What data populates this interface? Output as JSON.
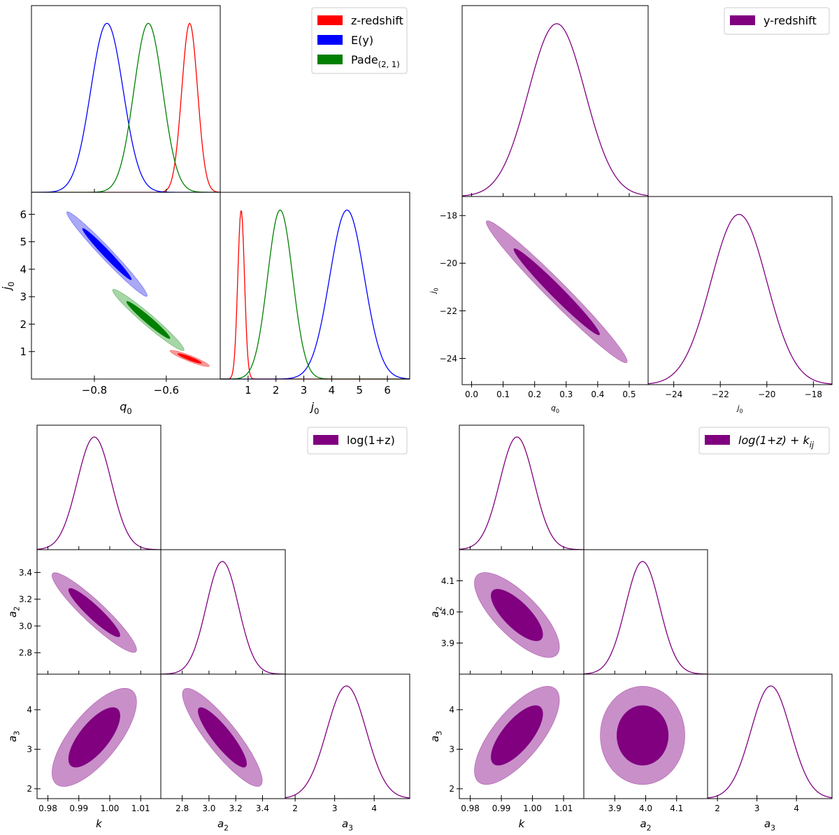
{
  "colors": {
    "red": "#ff0000",
    "blue": "#0000ff",
    "green": "#008000",
    "purple": "#800080",
    "purple_light": "#c98fc9",
    "red_light": "#f59a9a",
    "blue_light": "#a9a9f5",
    "green_light": "#a6d6a6"
  },
  "chart_data": [
    {
      "type": "triangle",
      "panel": "top-left",
      "params": [
        {
          "name": "q0",
          "label": "q",
          "sub": "0",
          "range": [
            -0.975,
            -0.45
          ],
          "ticks": [
            -0.8,
            -0.6
          ],
          "tick_labels": [
            "−0.8",
            "−0.6"
          ]
        },
        {
          "name": "j0",
          "label": "j",
          "sub": "0",
          "range": [
            0.0,
            6.8
          ],
          "ticks": [
            1,
            2,
            3,
            4,
            5,
            6
          ],
          "tick_labels": [
            "1",
            "2",
            "3",
            "4",
            "5",
            "6"
          ]
        }
      ],
      "legend": {
        "position": "top-right",
        "entries": [
          {
            "text": "z-redshift",
            "sub": "",
            "color": "red"
          },
          {
            "text": "E(y)",
            "sub": "",
            "color": "blue"
          },
          {
            "text": "Pade",
            "sub": "(2, 1)",
            "color": "green"
          }
        ]
      },
      "series": [
        {
          "color": "red",
          "fill": "red_light",
          "mean": [
            -0.535,
            0.75
          ],
          "sigma": [
            0.022,
            0.12
          ],
          "rho": -0.92,
          "contour1": true
        },
        {
          "color": "blue",
          "fill": "blue_light",
          "mean": [
            -0.765,
            4.55
          ],
          "sigma": [
            0.045,
            0.62
          ],
          "rho": -0.98,
          "contour1": true
        },
        {
          "color": "green",
          "fill": "green_light",
          "mean": [
            -0.65,
            2.15
          ],
          "sigma": [
            0.04,
            0.45
          ],
          "rho": -0.97,
          "contour1": true
        }
      ]
    },
    {
      "type": "triangle",
      "panel": "top-right",
      "params": [
        {
          "name": "q0",
          "label": "q",
          "sub": "0",
          "range": [
            -0.03,
            0.56
          ],
          "ticks": [
            0.0,
            0.1,
            0.2,
            0.3,
            0.4,
            0.5
          ],
          "tick_labels": [
            "0.0",
            "0.1",
            "0.2",
            "0.3",
            "0.4",
            "0.5"
          ]
        },
        {
          "name": "j0",
          "label": "j",
          "sub": "0",
          "range": [
            -25.1,
            -17.2
          ],
          "ticks": [
            -24,
            -22,
            -20,
            -18
          ],
          "tick_labels": [
            "−24",
            "−22",
            "−20",
            "−18"
          ]
        }
      ],
      "legend": {
        "position": "top-right",
        "entries": [
          {
            "text": "y-redshift",
            "sub": "",
            "color": "purple"
          }
        ]
      },
      "series": [
        {
          "color": "purple",
          "fill": "purple_light",
          "mean": [
            0.27,
            -21.2
          ],
          "sigma": [
            0.09,
            1.2
          ],
          "rho": -0.98,
          "contour1": true
        }
      ]
    },
    {
      "type": "triangle",
      "panel": "bottom-left",
      "params": [
        {
          "name": "k",
          "label": "k",
          "sub": "",
          "range": [
            0.9765,
            1.0165
          ],
          "ticks": [
            0.98,
            0.99,
            1.0,
            1.01
          ],
          "tick_labels": [
            "0.98",
            "0.99",
            "1.00",
            "1.01"
          ]
        },
        {
          "name": "a2",
          "label": "a",
          "sub": "2",
          "range": [
            2.64,
            3.57
          ],
          "ticks": [
            2.8,
            3.0,
            3.2,
            3.4
          ],
          "tick_labels": [
            "2.8",
            "3.0",
            "3.2",
            "3.4"
          ]
        },
        {
          "name": "a3",
          "label": "a",
          "sub": "3",
          "range": [
            1.75,
            4.9
          ],
          "ticks": [
            2,
            3,
            4
          ],
          "tick_labels": [
            "2",
            "3",
            "4"
          ]
        }
      ],
      "legend": {
        "position": "top-right",
        "entries": [
          {
            "text": "log(1+z)",
            "sub": "",
            "color": "purple"
          }
        ]
      },
      "series": [
        {
          "color": "purple",
          "fill": "purple_light",
          "mean": [
            0.995,
            3.1,
            3.3
          ],
          "sigma": [
            0.0055,
            0.12,
            0.5
          ],
          "rho": [
            [
              1,
              -0.93,
              0.72
            ],
            [
              -0.93,
              1,
              -0.88
            ],
            [
              0.72,
              -0.88,
              1
            ]
          ],
          "contour1": true
        }
      ]
    },
    {
      "type": "triangle",
      "panel": "bottom-right",
      "params": [
        {
          "name": "k",
          "label": "k",
          "sub": "",
          "range": [
            0.9765,
            1.0165
          ],
          "ticks": [
            0.98,
            0.99,
            1.0,
            1.01
          ],
          "tick_labels": [
            "0.98",
            "0.99",
            "1.00",
            "1.01"
          ]
        },
        {
          "name": "a2",
          "label": "a",
          "sub": "2",
          "range": [
            3.8,
            4.2
          ],
          "ticks": [
            3.9,
            4.0,
            4.1
          ],
          "tick_labels": [
            "3.9",
            "4.0",
            "4.1"
          ]
        },
        {
          "name": "a3",
          "label": "a",
          "sub": "3",
          "range": [
            1.75,
            4.9
          ],
          "ticks": [
            2,
            3,
            4
          ],
          "tick_labels": [
            "2",
            "3",
            "4"
          ]
        }
      ],
      "legend": {
        "position": "top-right",
        "entries": [
          {
            "text": "log(1+z) + k",
            "sub": "ij",
            "color": "purple"
          }
        ]
      },
      "series": [
        {
          "color": "purple",
          "fill": "purple_light",
          "mean": [
            0.995,
            3.99,
            3.35
          ],
          "sigma": [
            0.0055,
            0.055,
            0.5
          ],
          "rho": [
            [
              1,
              -0.75,
              0.72
            ],
            [
              -0.75,
              1,
              0.0
            ],
            [
              0.72,
              0.0,
              1
            ]
          ],
          "contour1": true
        }
      ]
    }
  ]
}
